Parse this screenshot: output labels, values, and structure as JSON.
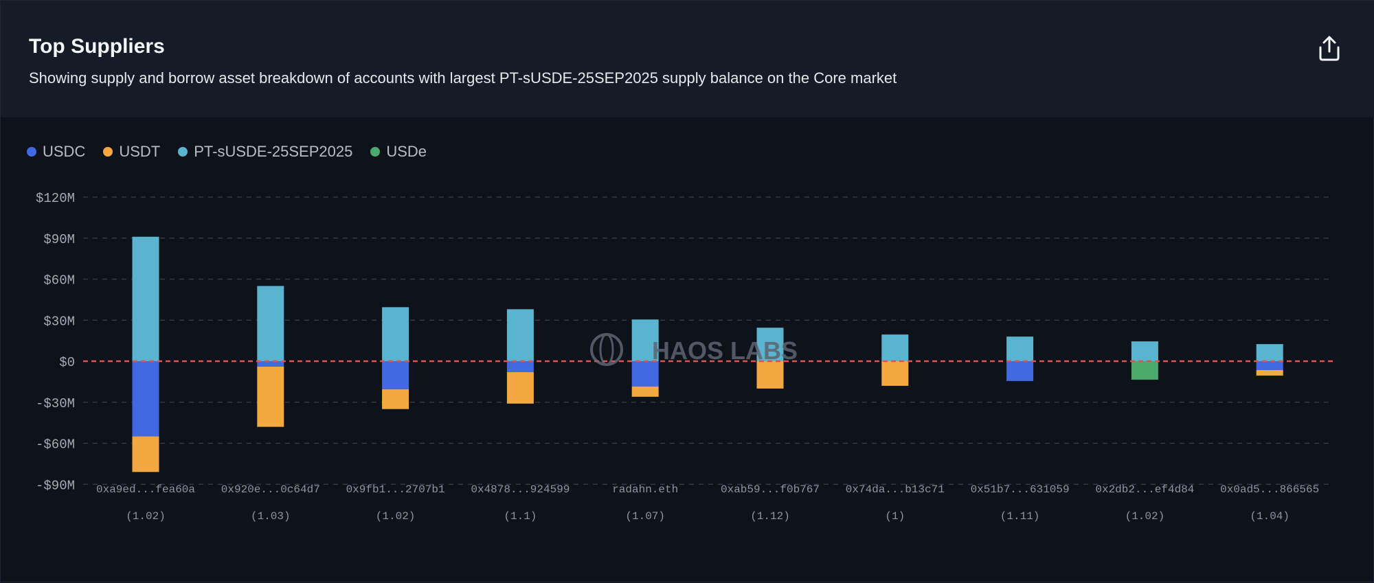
{
  "header": {
    "title": "Top Suppliers",
    "subtitle": "Showing supply and borrow asset breakdown of accounts with largest PT-sUSDE-25SEP2025 supply balance on the Core market",
    "share_icon": "share-upload-icon"
  },
  "watermark": "HAOS LABS",
  "colors": {
    "USDC": "#4169e1",
    "USDT": "#f3a940",
    "PT-sUSDE-25SEP2025": "#5ab4cf",
    "USDe": "#4aaa6e",
    "zero_line": "#e0524f",
    "grid": "#3a4150"
  },
  "chart_data": {
    "type": "bar",
    "stacked": true,
    "legend": [
      "USDC",
      "USDT",
      "PT-sUSDE-25SEP2025",
      "USDe"
    ],
    "legend_position": "top-left",
    "grid": true,
    "ylim": [
      -90,
      120
    ],
    "yticks": [
      120,
      90,
      60,
      30,
      0,
      -30,
      -60,
      -90
    ],
    "ytick_labels": [
      "$120M",
      "$90M",
      "$60M",
      "$30M",
      "$0",
      "-$30M",
      "-$60M",
      "-$90M"
    ],
    "categories": [
      "0xa9ed...fea60a",
      "0x920e...0c64d7",
      "0x9fb1...2707b1",
      "0x4878...924599",
      "radahn.eth",
      "0xab59...f0b767",
      "0x74da...b13c71",
      "0x51b7...631059",
      "0x2db2...ef4d84",
      "0x0ad5...866565"
    ],
    "sublabels": [
      "(1.02)",
      "(1.03)",
      "(1.02)",
      "(1.1)",
      "(1.07)",
      "(1.12)",
      "(1)",
      "(1.11)",
      "(1.02)",
      "(1.04)"
    ],
    "series": [
      {
        "name": "PT-sUSDE-25SEP2025",
        "values": [
          91,
          55,
          39.5,
          38,
          30.5,
          24.5,
          19.5,
          18,
          14.5,
          12.5
        ]
      },
      {
        "name": "USDC",
        "values": [
          -55,
          -4,
          -20.5,
          -8,
          -18.5,
          0,
          0,
          -14.5,
          0,
          -6.5
        ]
      },
      {
        "name": "USDT",
        "values": [
          -26,
          -44,
          -14.5,
          -23,
          -7.5,
          -20,
          -18,
          0,
          0,
          -4
        ]
      },
      {
        "name": "USDe",
        "values": [
          0,
          0,
          0,
          0,
          0,
          0,
          0,
          0,
          -13.5,
          0
        ]
      }
    ]
  }
}
